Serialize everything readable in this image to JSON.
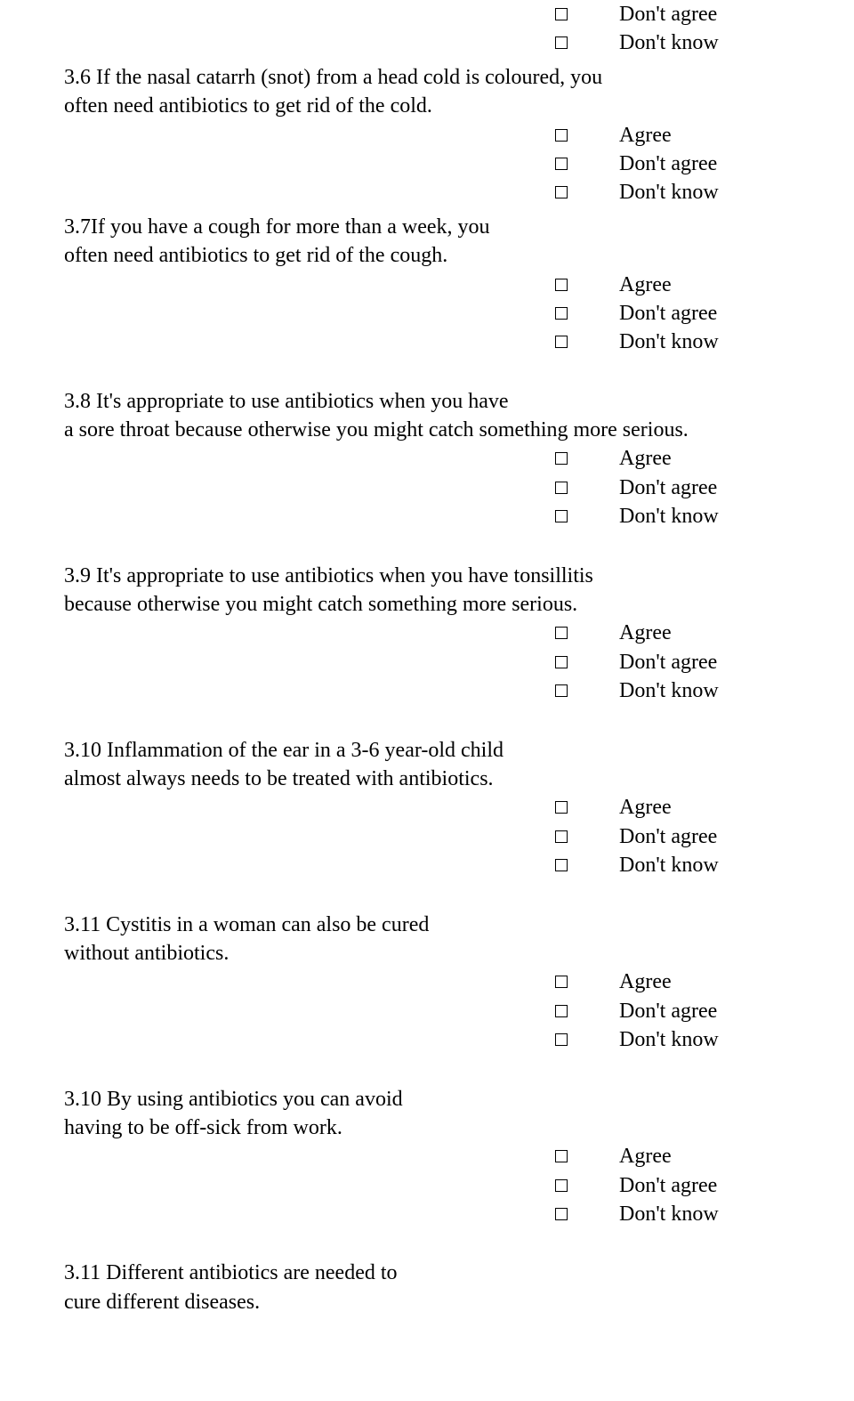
{
  "options": {
    "agree": "Agree",
    "dont_agree": "Don't agree",
    "dont_know": "Don't know"
  },
  "questions": {
    "q36_l1": "3.6 If the nasal catarrh (snot) from a head cold is coloured, you",
    "q36_l2": "often need antibiotics to get rid of the cold.",
    "q37_l1": "3.7If you have a cough for more than a week, you",
    "q37_l2": "often need antibiotics to get rid of the cough.",
    "q38_l1": "3.8 It's appropriate to use antibiotics when you have",
    "q38_l2": "a sore throat because otherwise you might catch something more serious.",
    "q39_l1": "3.9 It's appropriate to use antibiotics when you have tonsillitis",
    "q39_l2": " because otherwise you might catch something more serious.",
    "q310_l1": "3.10 Inflammation of the ear in a 3-6 year-old child",
    "q310_l2": "almost always needs to be treated with antibiotics.",
    "q311_l1": "3.11 Cystitis in a woman can also be cured",
    "q311_l2": "without antibiotics.",
    "q310b_l1": "3.10 By using antibiotics you can avoid",
    "q310b_l2": "having to be off-sick from work.",
    "q311b_l1": "3.11 Different antibiotics are needed to",
    "q311b_l2": "cure different diseases."
  }
}
